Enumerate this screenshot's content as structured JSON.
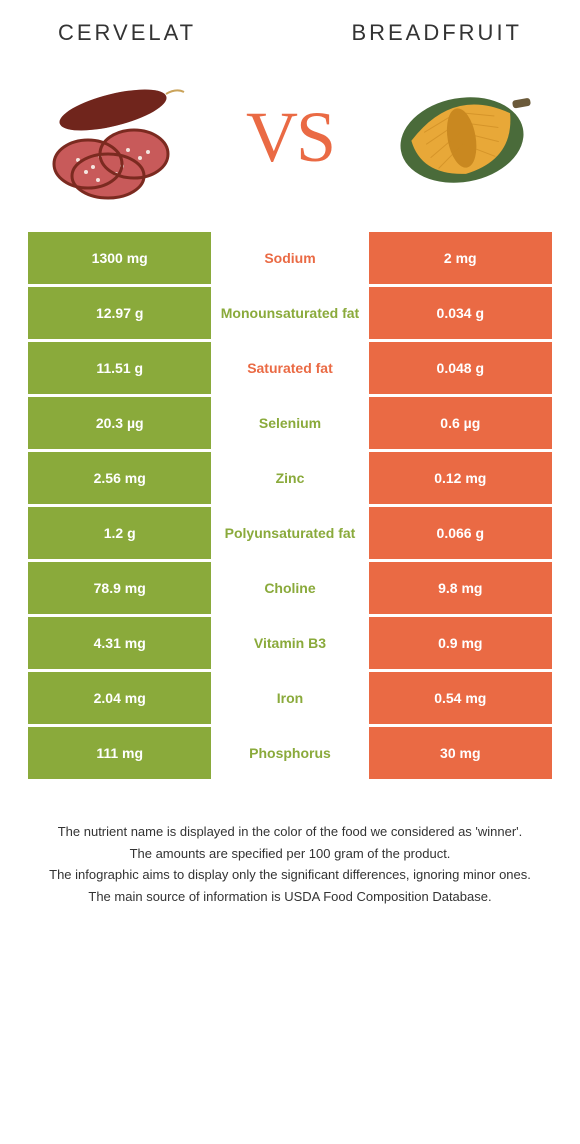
{
  "header": {
    "left_name": "Cervelat",
    "right_name": "Breadfruit",
    "vs_label": "VS"
  },
  "colors": {
    "left_bg": "#8aaa3b",
    "right_bg": "#ea6a44",
    "left_text": "#8aaa3b",
    "right_text": "#ea6a44",
    "page_bg": "#ffffff"
  },
  "table": {
    "rows": [
      {
        "left": "1300 mg",
        "label": "Sodium",
        "right": "2 mg",
        "winner": "right"
      },
      {
        "left": "12.97 g",
        "label": "Monounsaturated fat",
        "right": "0.034 g",
        "winner": "left"
      },
      {
        "left": "11.51 g",
        "label": "Saturated fat",
        "right": "0.048 g",
        "winner": "right"
      },
      {
        "left": "20.3 µg",
        "label": "Selenium",
        "right": "0.6 µg",
        "winner": "left"
      },
      {
        "left": "2.56 mg",
        "label": "Zinc",
        "right": "0.12 mg",
        "winner": "left"
      },
      {
        "left": "1.2 g",
        "label": "Polyunsaturated fat",
        "right": "0.066 g",
        "winner": "left"
      },
      {
        "left": "78.9 mg",
        "label": "Choline",
        "right": "9.8 mg",
        "winner": "left"
      },
      {
        "left": "4.31 mg",
        "label": "Vitamin B3",
        "right": "0.9 mg",
        "winner": "left"
      },
      {
        "left": "2.04 mg",
        "label": "Iron",
        "right": "0.54 mg",
        "winner": "left"
      },
      {
        "left": "111 mg",
        "label": "Phosphorus",
        "right": "30 mg",
        "winner": "left"
      }
    ]
  },
  "footer": {
    "line1": "The nutrient name is displayed in the color of the food we considered as 'winner'.",
    "line2": "The amounts are specified per 100 gram of the product.",
    "line3": "The infographic aims to display only the significant differences, ignoring minor ones.",
    "line4": "The main source of information is USDA Food Composition Database."
  }
}
